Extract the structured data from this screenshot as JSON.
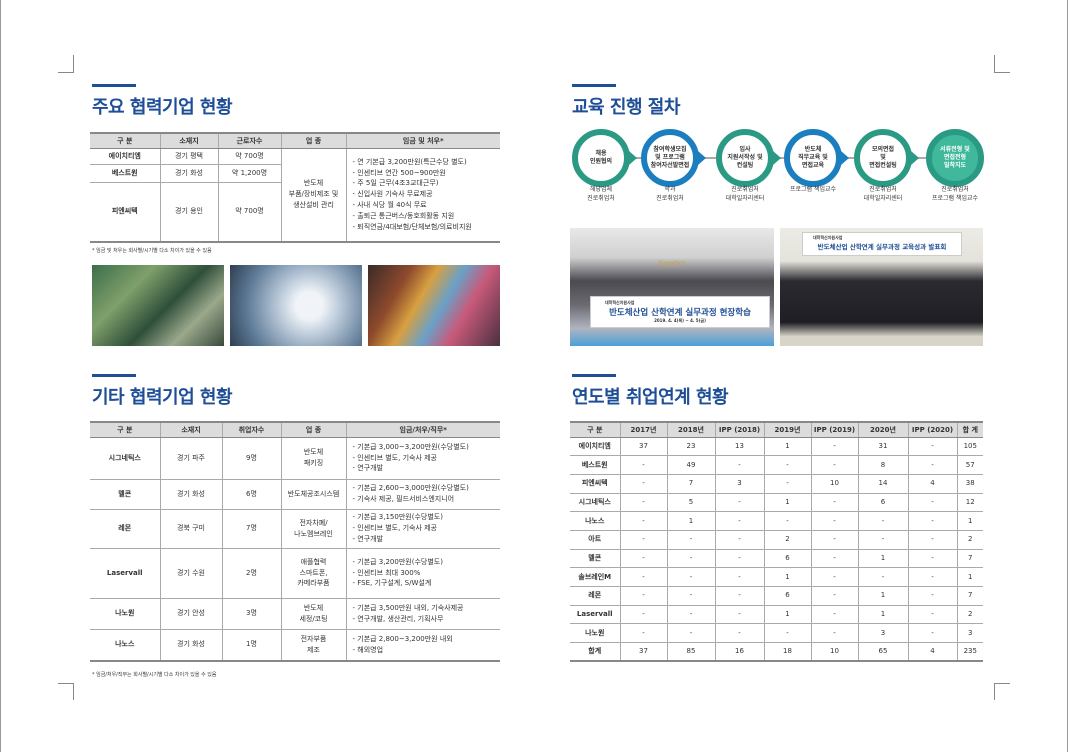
{
  "left": {
    "section1": {
      "title": "주요 협력기업 현황",
      "headers": [
        "구 분",
        "소재지",
        "근로자수",
        "업 종",
        "임금 및 처우*"
      ],
      "rows": [
        {
          "name": "에이치티엠",
          "loc": "경기 평택",
          "count": "약 700명"
        },
        {
          "name": "베스트원",
          "loc": "경기 화성",
          "count": "약 1,200명"
        },
        {
          "name": "피엔씨텍",
          "loc": "경기 용인",
          "count": "약 700명"
        }
      ],
      "industry": [
        "반도체",
        "부품/장비제조 및",
        "생산설비 관리"
      ],
      "benefits": [
        "- 연 기본급 3,200만원(특근수당 별도)",
        "- 인센티브 연간 500~900만원",
        "- 주 5일 근무(4조3교대근무)",
        "- 신입사원 기숙사 무료제공",
        "- 사내 식당 월 40식 무료",
        "- 출퇴근 통근버스/동호회활동 지원",
        "- 퇴직연금/4대보험/단체보험/의료비지원"
      ],
      "note": "* 임금 및 처우는 회사별/시기별 다소 차이가 있을 수 있음"
    },
    "section2": {
      "title": "기타 협력기업 현황",
      "headers": [
        "구 분",
        "소재지",
        "취업자수",
        "업 종",
        "임금/처우/직무*"
      ],
      "rows": [
        {
          "name": "시그네틱스",
          "loc": "경기 파주",
          "count": "9명",
          "industry": [
            "반도체",
            "패키징"
          ],
          "details": [
            "- 기본급 3,000~3,200만원(수당별도)",
            "- 인센티브 별도, 기숙사 제공",
            "- 연구개발"
          ]
        },
        {
          "name": "멜콘",
          "loc": "경기 화성",
          "count": "6명",
          "industry": [
            "반도체공조시스템"
          ],
          "details": [
            "- 기본급 2,600~3,000만원(수당별도)",
            "- 기숙사 제공, 필드서비스엔지니어"
          ]
        },
        {
          "name": "레몬",
          "loc": "경북 구미",
          "count": "7명",
          "industry": [
            "전자차폐/",
            "나노멤브레인"
          ],
          "details": [
            "- 기본급 3,150만원(수당별도)",
            "- 인센티브 별도, 기숙사 제공",
            "- 연구개발"
          ]
        },
        {
          "name": "Laservall",
          "loc": "경기 수원",
          "count": "2명",
          "industry": [
            "애플협력",
            "스마트폰,",
            "카메라부품"
          ],
          "details": [
            "- 기본급 3,200만원(수당별도)",
            "- 인센티브 최대 300%",
            "- FSE, 기구설계, S/W설계"
          ]
        },
        {
          "name": "나노원",
          "loc": "경기 안성",
          "count": "3명",
          "industry": [
            "반도체",
            "세정/코팅"
          ],
          "details": [
            "- 기본급 3,500만원 내외, 기숙사제공",
            "- 연구개발, 생산관리, 기획사무"
          ]
        },
        {
          "name": "나노스",
          "loc": "경기 화성",
          "count": "1명",
          "industry": [
            "전자부품",
            "제조"
          ],
          "details": [
            "- 기본급 2,800~3,200만원 내외",
            "- 해외영업"
          ]
        }
      ],
      "note": "* 임금/처우/직무는 회사별/시기별 다소 차이가 있을 수 있음"
    }
  },
  "right": {
    "section3": {
      "title": "교육 진행 절차",
      "steps": [
        {
          "label": [
            "채용",
            "인원협의"
          ],
          "owner": [
            "해당업체",
            "진로취업처"
          ]
        },
        {
          "label": [
            "참여학생모집",
            "및 프로그램",
            "참여자선발면접"
          ],
          "owner": [
            "학과",
            "진로취업처"
          ]
        },
        {
          "label": [
            "입사",
            "지원서작성 및",
            "컨설팅"
          ],
          "owner": [
            "진로취업처",
            "대학일자리센터"
          ]
        },
        {
          "label": [
            "반도체",
            "직무교육 및",
            "면접교육"
          ],
          "owner": [
            "프로그램 책임교수"
          ]
        },
        {
          "label": [
            "모의면접",
            "및",
            "면접컨설팅"
          ],
          "owner": [
            "진로취업처",
            "대학일자리센터"
          ]
        },
        {
          "label": [
            "서류전형 및",
            "면접전형",
            "밀착지도"
          ],
          "owner": [
            "진로취업처",
            "프로그램 책임교수"
          ]
        }
      ],
      "photos": [
        {
          "banner_small": "대학혁신지원사업",
          "banner": "반도체산업 산학연계 실무과정 현장학습",
          "banner_date": "2019. 4. 4(목) ~ 4. 5(금)",
          "sign": "Signetics"
        },
        {
          "banner_small": "대학혁신지원사업",
          "banner": "반도체산업 산학연계 실무과정 교육성과 발표회"
        }
      ]
    },
    "section4": {
      "title": "연도별 취업연계 현황",
      "headers": [
        "구 분",
        "2017년",
        "2018년",
        "IPP (2018)",
        "2019년",
        "IPP (2019)",
        "2020년",
        "IPP (2020)",
        "합 계"
      ],
      "rows": [
        [
          "에이치티엠",
          "37",
          "23",
          "13",
          "1",
          "-",
          "31",
          "-",
          "105"
        ],
        [
          "베스트원",
          "-",
          "49",
          "-",
          "-",
          "-",
          "8",
          "-",
          "57"
        ],
        [
          "피엔씨텍",
          "-",
          "7",
          "3",
          "-",
          "10",
          "14",
          "4",
          "38"
        ],
        [
          "시그네틱스",
          "-",
          "5",
          "-",
          "1",
          "-",
          "6",
          "-",
          "12"
        ],
        [
          "나노스",
          "-",
          "1",
          "-",
          "-",
          "-",
          "-",
          "-",
          "1"
        ],
        [
          "아트",
          "-",
          "-",
          "-",
          "2",
          "-",
          "-",
          "-",
          "2"
        ],
        [
          "멜콘",
          "-",
          "-",
          "-",
          "6",
          "-",
          "1",
          "-",
          "7"
        ],
        [
          "솔브레인M",
          "-",
          "-",
          "-",
          "1",
          "-",
          "-",
          "-",
          "1"
        ],
        [
          "레몬",
          "-",
          "-",
          "-",
          "6",
          "-",
          "1",
          "-",
          "7"
        ],
        [
          "Laservall",
          "-",
          "-",
          "-",
          "1",
          "-",
          "1",
          "-",
          "2"
        ],
        [
          "나노원",
          "-",
          "-",
          "-",
          "-",
          "-",
          "3",
          "-",
          "3"
        ],
        [
          "합계",
          "37",
          "85",
          "16",
          "18",
          "10",
          "65",
          "4",
          "235"
        ]
      ]
    }
  },
  "colors": {
    "accent": "#1d4e96",
    "teal": "#2a9a84",
    "blue": "#1b7fbf",
    "header_bg": "#dcdcdc"
  }
}
